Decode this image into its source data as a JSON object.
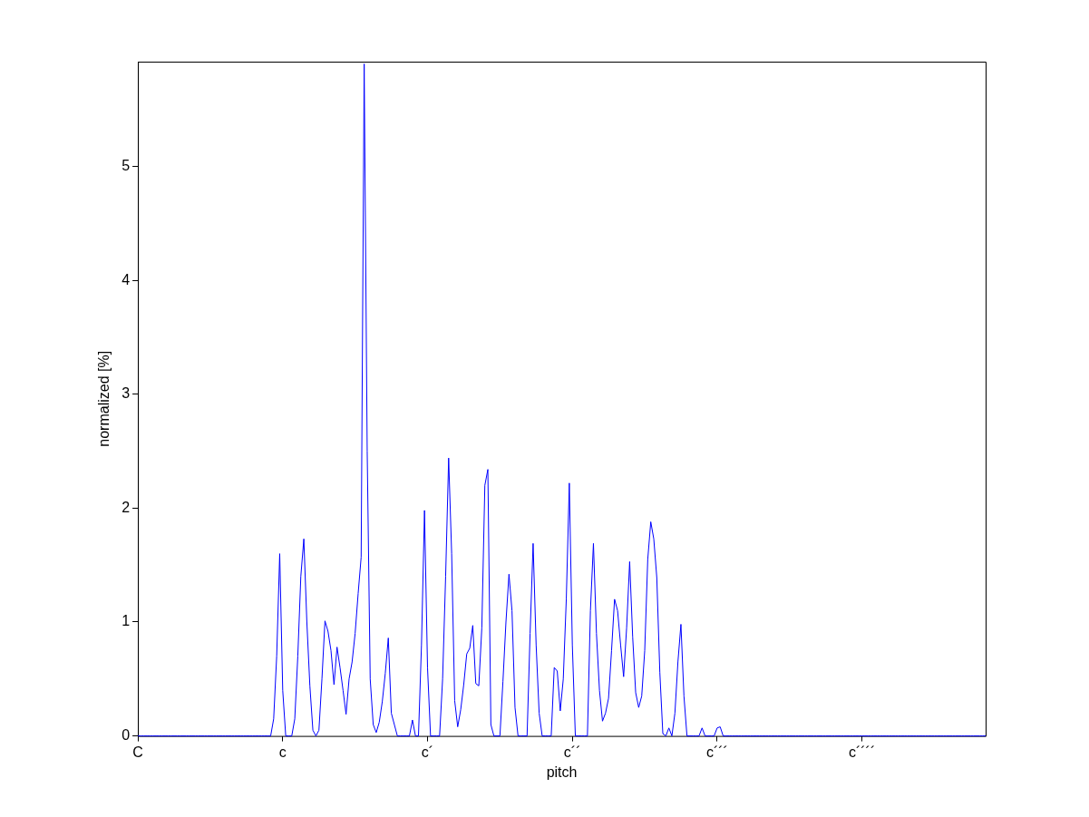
{
  "chart_data": {
    "type": "line",
    "xlabel": "pitch",
    "ylabel": "normalized [%]",
    "color": "#0000ff",
    "categories": [
      "C",
      null,
      null,
      null,
      null,
      null,
      null,
      null,
      null,
      null,
      null,
      null,
      null,
      null,
      null,
      null,
      null,
      null,
      null,
      null,
      null,
      null,
      null,
      null,
      null,
      null,
      null,
      null,
      null,
      null,
      null,
      null,
      null,
      null,
      null,
      null,
      null,
      null,
      null,
      null,
      null,
      null,
      null,
      null,
      null,
      null,
      null,
      null,
      "c",
      null,
      null,
      null,
      null,
      null,
      null,
      null,
      null,
      null,
      null,
      null,
      null,
      null,
      null,
      null,
      null,
      null,
      null,
      null,
      null,
      null,
      null,
      null,
      null,
      null,
      null,
      null,
      null,
      null,
      null,
      null,
      null,
      null,
      null,
      null,
      null,
      null,
      null,
      null,
      null,
      null,
      null,
      null,
      null,
      null,
      null,
      null,
      "c´",
      null,
      null,
      null,
      null,
      null,
      null,
      null,
      null,
      null,
      null,
      null,
      null,
      null,
      null,
      null,
      null,
      null,
      null,
      null,
      null,
      null,
      null,
      null,
      null,
      null,
      null,
      null,
      null,
      null,
      null,
      null,
      null,
      null,
      null,
      null,
      null,
      null,
      null,
      null,
      null,
      null,
      null,
      null,
      null,
      null,
      null,
      null,
      "c´´",
      null,
      null,
      null,
      null,
      null,
      null,
      null,
      null,
      null,
      null,
      null,
      null,
      null,
      null,
      null,
      null,
      null,
      null,
      null,
      null,
      null,
      null,
      null,
      null,
      null,
      null,
      null,
      null,
      null,
      null,
      null,
      null,
      null,
      null,
      null,
      null,
      null,
      null,
      null,
      null,
      null,
      null,
      null,
      null,
      null,
      null,
      null,
      "c´´´",
      null,
      null,
      null,
      null,
      null,
      null,
      null,
      null,
      null,
      null,
      null,
      null,
      null,
      null,
      null,
      null,
      null,
      null,
      null,
      null,
      null,
      null,
      null,
      null,
      null,
      null,
      null,
      null,
      null,
      null,
      null,
      null,
      null,
      null,
      null,
      null,
      null,
      null,
      null,
      null,
      null,
      null,
      null,
      null,
      null,
      null,
      null,
      "c´´´´",
      null,
      null,
      null,
      null,
      null,
      null,
      null,
      null,
      null,
      null,
      null,
      null,
      null,
      null,
      null,
      null,
      null,
      null,
      null,
      null,
      null,
      null,
      null,
      null,
      null,
      null,
      null,
      null,
      null,
      null,
      null,
      null,
      null,
      null,
      null,
      null,
      null,
      null,
      null,
      null,
      null
    ],
    "values": [
      0,
      0,
      0,
      0,
      0,
      0,
      0,
      0,
      0,
      0,
      0,
      0,
      0,
      0,
      0,
      0,
      0,
      0,
      0,
      0,
      0,
      0,
      0,
      0,
      0,
      0,
      0,
      0,
      0,
      0,
      0,
      0,
      0,
      0,
      0,
      0,
      0,
      0,
      0,
      0,
      0,
      0,
      0,
      0,
      0,
      0.15,
      0.7,
      1.6,
      0.4,
      0,
      0,
      0,
      0.15,
      0.7,
      1.4,
      1.73,
      1.0,
      0.44,
      0.05,
      0,
      0.05,
      0.5,
      1.01,
      0.92,
      0.75,
      0.45,
      0.78,
      0.6,
      0.4,
      0.19,
      0.5,
      0.65,
      0.9,
      1.25,
      1.57,
      5.9,
      2.5,
      0.5,
      0.1,
      0.03,
      0.12,
      0.3,
      0.55,
      0.86,
      0.2,
      0.1,
      0,
      0,
      0,
      0,
      0,
      0.14,
      0,
      0,
      0.8,
      1.98,
      0.6,
      0,
      0,
      0,
      0,
      0.5,
      1.4,
      2.44,
      1.6,
      0.31,
      0.08,
      0.23,
      0.45,
      0.72,
      0.77,
      0.97,
      0.46,
      0.44,
      0.95,
      2.2,
      2.34,
      0.1,
      0,
      0,
      0,
      0.48,
      1.0,
      1.42,
      1.1,
      0.25,
      0,
      0,
      0,
      0,
      0.9,
      1.69,
      0.8,
      0.2,
      0,
      0,
      0,
      0,
      0.6,
      0.57,
      0.22,
      0.5,
      1.2,
      2.22,
      0.8,
      0,
      0,
      0,
      0,
      0,
      1.1,
      1.69,
      0.9,
      0.4,
      0.13,
      0.2,
      0.33,
      0.75,
      1.2,
      1.1,
      0.8,
      0.52,
      0.95,
      1.53,
      0.87,
      0.38,
      0.25,
      0.35,
      0.75,
      1.55,
      1.88,
      1.73,
      1.39,
      0.56,
      0.02,
      0,
      0.07,
      0,
      0.2,
      0.65,
      0.98,
      0.35,
      0,
      0,
      0,
      0,
      0,
      0.07,
      0,
      0,
      0,
      0,
      0.07,
      0.08,
      0,
      0,
      0,
      0,
      0,
      0,
      0,
      0,
      0,
      0,
      0,
      0,
      0,
      0,
      0,
      0,
      0,
      0,
      0,
      0,
      0,
      0,
      0,
      0,
      0,
      0,
      0,
      0,
      0,
      0,
      0,
      0,
      0,
      0,
      0,
      0,
      0,
      0,
      0,
      0,
      0,
      0,
      0,
      0,
      0,
      0,
      0,
      0,
      0,
      0,
      0,
      0,
      0,
      0,
      0,
      0,
      0,
      0,
      0,
      0,
      0,
      0,
      0,
      0,
      0,
      0,
      0,
      0,
      0,
      0,
      0,
      0,
      0,
      0,
      0,
      0,
      0,
      0,
      0,
      0,
      0,
      0,
      0,
      0,
      0,
      0,
      0,
      0
    ],
    "ylim": [
      0,
      5.92
    ],
    "yticks": [
      0,
      1,
      2,
      3,
      4,
      5
    ]
  }
}
